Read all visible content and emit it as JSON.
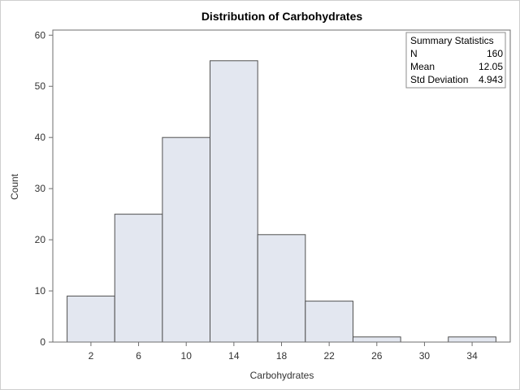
{
  "chart_data": {
    "type": "bar",
    "title": "Distribution of Carbohydrates",
    "xlabel": "Carbohydrates",
    "ylabel": "Count",
    "bins": [
      {
        "start": 0,
        "end": 4,
        "count": 9
      },
      {
        "start": 4,
        "end": 8,
        "count": 25
      },
      {
        "start": 8,
        "end": 12,
        "count": 40
      },
      {
        "start": 12,
        "end": 16,
        "count": 55
      },
      {
        "start": 16,
        "end": 20,
        "count": 21
      },
      {
        "start": 20,
        "end": 24,
        "count": 8
      },
      {
        "start": 24,
        "end": 28,
        "count": 1
      },
      {
        "start": 28,
        "end": 32,
        "count": 0
      },
      {
        "start": 32,
        "end": 36,
        "count": 1
      }
    ],
    "xticks": [
      2,
      6,
      10,
      14,
      18,
      22,
      26,
      30,
      34
    ],
    "yticks": [
      0,
      10,
      20,
      30,
      40,
      50,
      60
    ],
    "xlim": [
      -1.2,
      37.2
    ],
    "ylim": [
      0,
      61
    ],
    "grid": false,
    "bar_fill": "#e3e7f0",
    "bar_stroke": "#505050"
  },
  "summary": {
    "header": "Summary Statistics",
    "rows": [
      {
        "label": "N",
        "value": "160"
      },
      {
        "label": "Mean",
        "value": "12.05"
      },
      {
        "label": "Std Deviation",
        "value": "4.943"
      }
    ]
  }
}
